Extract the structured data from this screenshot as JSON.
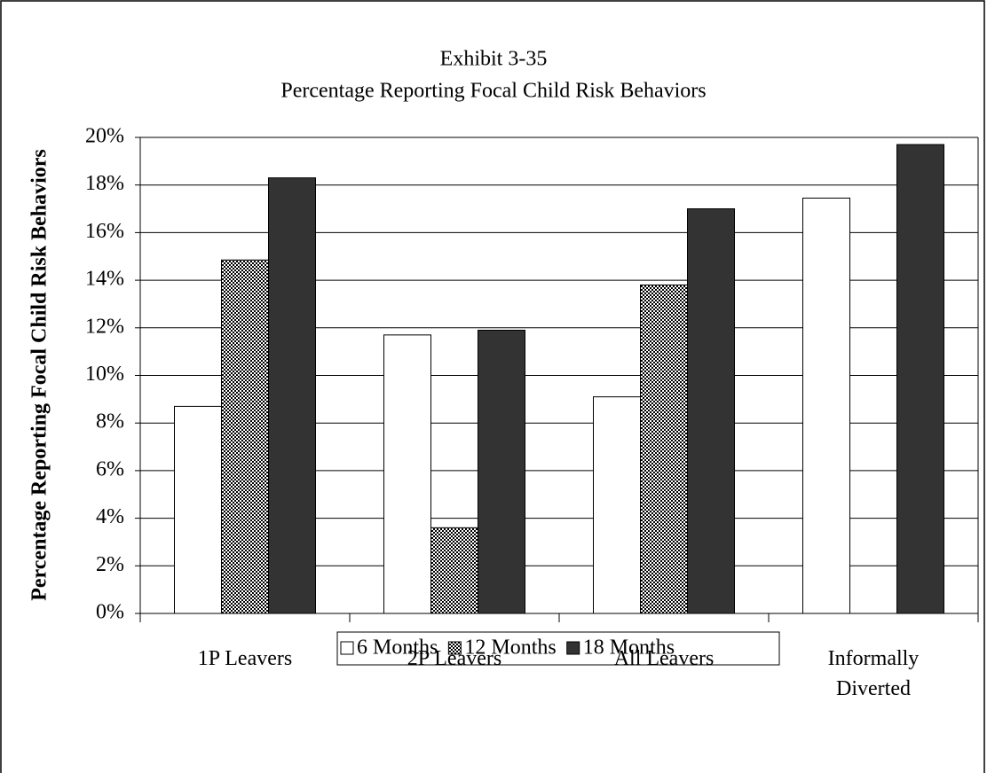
{
  "chart_data": {
    "type": "bar",
    "title": [
      "Exhibit 3-35",
      "Percentage Reporting Focal Child Risk Behaviors"
    ],
    "y_label": "Percentage Reporting Focal Child Risk Behaviors",
    "categories": [
      "1P Leavers",
      "2P Leavers",
      "All Leavers",
      "Informally Diverted"
    ],
    "series": [
      {
        "name": "6 Months",
        "color": "#ffffff",
        "values": [
          8.7,
          11.7,
          9.1,
          17.45
        ]
      },
      {
        "name": "12 Months",
        "color": "#000000",
        "pattern": "checkered",
        "values": [
          14.85,
          3.6,
          13.8,
          null
        ]
      },
      {
        "name": "18 Months",
        "color": "#333333",
        "values": [
          18.3,
          11.9,
          17.0,
          19.7
        ]
      }
    ],
    "ylim": [
      0,
      20
    ],
    "yticks": [
      {
        "value": 0,
        "label": "0%"
      },
      {
        "value": 2,
        "label": "2%"
      },
      {
        "value": 4,
        "label": "4%"
      },
      {
        "value": 6,
        "label": "6%"
      },
      {
        "value": 8,
        "label": "8%"
      },
      {
        "value": 10,
        "label": "10%"
      },
      {
        "value": 12,
        "label": "12%"
      },
      {
        "value": 14,
        "label": "14%"
      },
      {
        "value": 16,
        "label": "16%"
      },
      {
        "value": 18,
        "label": "18%"
      },
      {
        "value": 20,
        "label": "20%"
      }
    ],
    "grid": true,
    "legend": "bottom"
  }
}
